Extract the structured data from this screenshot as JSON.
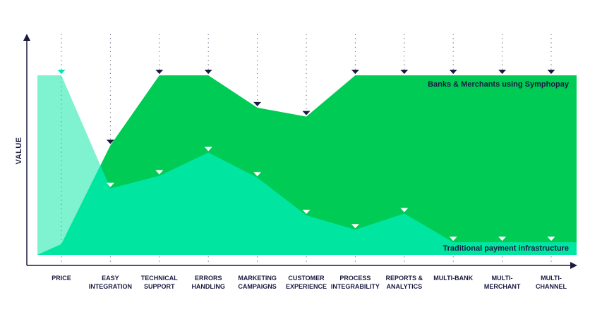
{
  "chart_data": {
    "type": "area",
    "title": "",
    "xlabel": "",
    "ylabel": "VALUE",
    "ylim": [
      0,
      100
    ],
    "grid": false,
    "categories": [
      [
        "PRICE"
      ],
      [
        "EASY",
        "INTEGRATION"
      ],
      [
        "TECHNICAL",
        "SUPPORT"
      ],
      [
        "ERRORS",
        "HANDLING"
      ],
      [
        "MARKETING",
        "CAMPAIGNS"
      ],
      [
        "CUSTOMER",
        "EXPERIENCE"
      ],
      [
        "PROCESS",
        "INTEGRABILITY"
      ],
      [
        "REPORTS &",
        "ANALYTICS"
      ],
      [
        "MULTI-BANK"
      ],
      [
        "MULTI-",
        "MERCHANT"
      ],
      [
        "MULTI-",
        "CHANNEL"
      ]
    ],
    "series": [
      {
        "name": "Traditional payment infrastructure",
        "color": "#00e6a0",
        "values": [
          100,
          37,
          44,
          57,
          43,
          22,
          14,
          23,
          7,
          7,
          7
        ]
      },
      {
        "name": "Banks & Merchants using Symphopay",
        "color": "#00cc55",
        "values": [
          6,
          61,
          100,
          100,
          82,
          77,
          100,
          100,
          100,
          100,
          100
        ]
      }
    ],
    "colors": {
      "axis": "#1a1a40",
      "marker_dark": "#1a1a40",
      "marker_light": "#ffffff",
      "price_marker": "#00e6b4",
      "overlap": "#7ef3d4"
    }
  }
}
